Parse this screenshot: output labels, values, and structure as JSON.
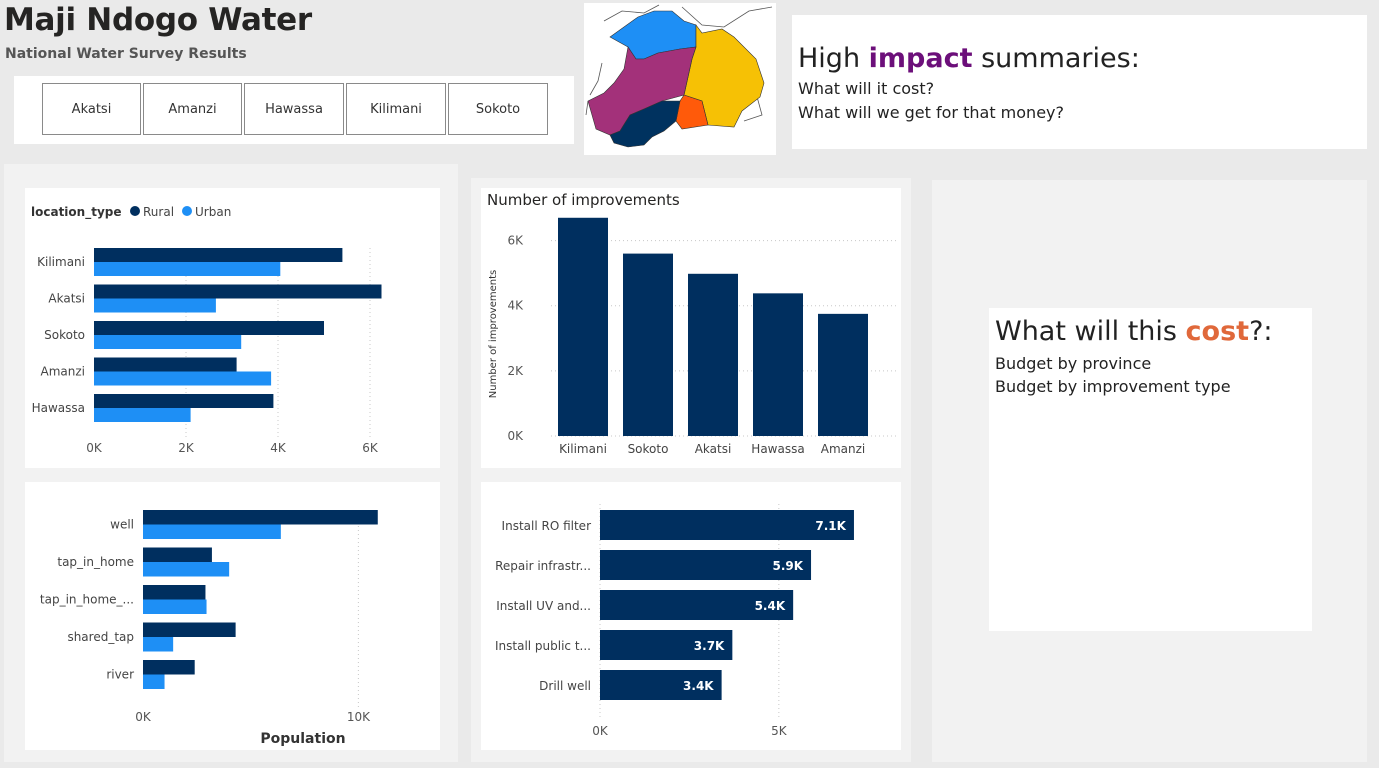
{
  "header": {
    "title": "Maji Ndogo Water",
    "subtitle": "National Water Survey Results"
  },
  "provinces": [
    "Akatsi",
    "Amanzi",
    "Hawassa",
    "Kilimani",
    "Sokoto"
  ],
  "colors": {
    "rural": "#002f5f",
    "urban": "#1e8ff5",
    "impact_accent": "#6c0f7a",
    "cost_accent": "#e0683a"
  },
  "summary_top": {
    "head_pre": "High ",
    "head_accent": "impact",
    "head_post": " summaries:",
    "line1": "What will it cost?",
    "line2": "What will we get for that money?"
  },
  "summary_cost": {
    "head_pre": "What will this ",
    "head_accent": "cost",
    "head_post": "?:",
    "line1": "Budget by province",
    "line2": "Budget by improvement type"
  },
  "chart_data": [
    {
      "type": "bar",
      "orientation": "horizontal",
      "legend_title": "location_type",
      "legend_placement": "top-left",
      "categories": [
        "Kilimani",
        "Akatsi",
        "Sokoto",
        "Amanzi",
        "Hawassa"
      ],
      "series": [
        {
          "name": "Rural",
          "values": [
            5400,
            6250,
            5000,
            3100,
            3900
          ]
        },
        {
          "name": "Urban",
          "values": [
            4050,
            2650,
            3200,
            3850,
            2100
          ]
        }
      ],
      "xlim": [
        0,
        7000
      ],
      "xticks": [
        "0K",
        "2K",
        "4K",
        "6K"
      ],
      "xtick_values": [
        0,
        2000,
        4000,
        6000
      ]
    },
    {
      "type": "bar",
      "orientation": "horizontal",
      "categories": [
        "well",
        "tap_in_home",
        "tap_in_home_...",
        "shared_tap",
        "river"
      ],
      "series": [
        {
          "name": "Rural",
          "values": [
            10900,
            3200,
            2900,
            4300,
            2400
          ]
        },
        {
          "name": "Urban",
          "values": [
            6400,
            4000,
            2950,
            1400,
            1000
          ]
        }
      ],
      "xlabel": "Population",
      "xlim": [
        0,
        13000
      ],
      "xticks": [
        "0K",
        "10K"
      ],
      "xtick_values": [
        0,
        10000
      ]
    },
    {
      "type": "bar",
      "orientation": "vertical",
      "title": "Number of improvements",
      "ylabel": "Number of improvements",
      "categories": [
        "Kilimani",
        "Sokoto",
        "Akatsi",
        "Hawassa",
        "Amanzi"
      ],
      "values": [
        6700,
        5600,
        4980,
        4380,
        3750
      ],
      "ylim": [
        0,
        7000
      ],
      "yticks": [
        "0K",
        "2K",
        "4K",
        "6K"
      ],
      "ytick_values": [
        0,
        2000,
        4000,
        6000
      ]
    },
    {
      "type": "bar",
      "orientation": "horizontal",
      "categories": [
        "Install RO filter",
        "Repair infrastr...",
        "Install UV and...",
        "Install public t...",
        "Drill well"
      ],
      "values": [
        7100,
        5900,
        5400,
        3700,
        3400
      ],
      "data_labels": [
        "7.1K",
        "5.9K",
        "5.4K",
        "3.7K",
        "3.4K"
      ],
      "xlim": [
        0,
        7800
      ],
      "xticks": [
        "0K",
        "5K"
      ],
      "xtick_values": [
        0,
        5000
      ]
    }
  ]
}
